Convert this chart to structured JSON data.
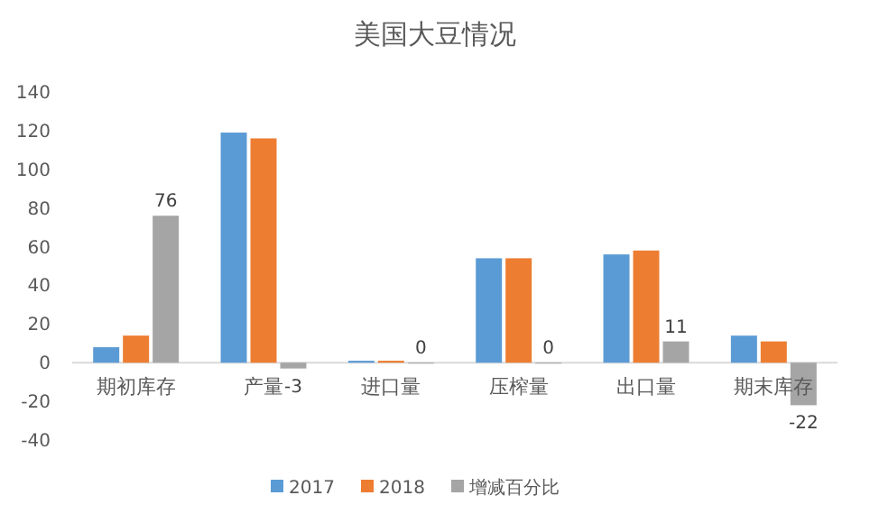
{
  "chart_data": {
    "type": "bar",
    "title": "美国大豆情况",
    "categories": [
      "期初库存",
      "产量",
      "进口量",
      "压榨量",
      "出口量",
      "期末库存"
    ],
    "series": [
      {
        "name": "2017",
        "color": "#5b9bd5",
        "values": [
          8,
          119,
          1,
          54,
          56,
          14
        ]
      },
      {
        "name": "2018",
        "color": "#ed7d31",
        "values": [
          14,
          116,
          1,
          54,
          58,
          11
        ]
      },
      {
        "name": "增减百分比",
        "color": "#a5a5a5",
        "values": [
          76,
          -3,
          0,
          0,
          11,
          -22
        ],
        "value_labels": [
          "76",
          "-3",
          "0",
          "0",
          "11",
          "-22"
        ]
      }
    ],
    "ylim": [
      -40,
      140
    ],
    "yticks": [
      -40,
      -20,
      0,
      20,
      40,
      60,
      80,
      100,
      120,
      140
    ],
    "grid": false,
    "legend": "bottom"
  }
}
